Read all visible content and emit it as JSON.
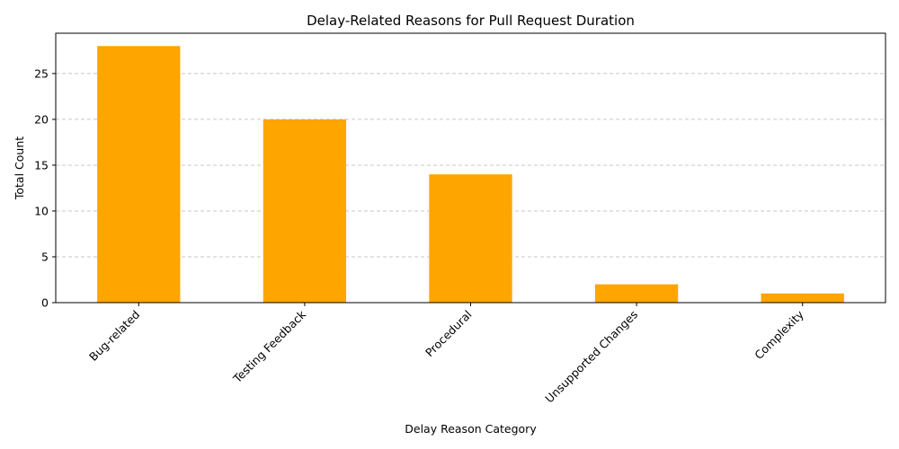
{
  "chart_data": {
    "type": "bar",
    "title": "Delay-Related Reasons for Pull Request Duration",
    "xlabel": "Delay Reason Category",
    "ylabel": "Total Count",
    "categories": [
      "Bug-related",
      "Testing Feedback",
      "Procedural",
      "Unsupported Changes",
      "Complexity"
    ],
    "values": [
      28,
      20,
      14,
      2,
      1
    ],
    "yticks": [
      0,
      5,
      10,
      15,
      20,
      25
    ],
    "ylim": [
      0,
      29.4
    ],
    "grid": "y-dashed",
    "bar_color": "#ffa500"
  }
}
